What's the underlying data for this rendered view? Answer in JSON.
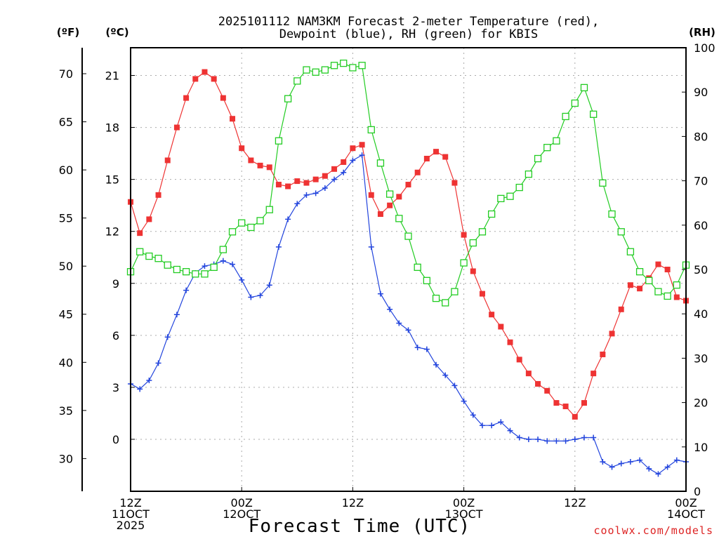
{
  "chart_data": {
    "type": "line",
    "title_lines": [
      "2025101112 NAM3KM Forecast 2-meter Temperature (red),",
      "Dewpoint (blue), RH (green) for KBIS"
    ],
    "unit_labels": {
      "fahrenheit": "(ºF)",
      "celsius": "(ºC)",
      "rh": "(RH)"
    },
    "xlabel": "Forecast Time (UTC)",
    "credit": "coolwx.com/models",
    "x_range_hours": [
      0,
      60
    ],
    "x_ticks": [
      {
        "hour": 0,
        "lines": [
          "12Z",
          "11OCT",
          "2025"
        ]
      },
      {
        "hour": 12,
        "lines": [
          "00Z",
          "12OCT"
        ]
      },
      {
        "hour": 24,
        "lines": [
          "12Z"
        ]
      },
      {
        "hour": 36,
        "lines": [
          "00Z",
          "13OCT"
        ]
      },
      {
        "hour": 48,
        "lines": [
          "12Z"
        ]
      },
      {
        "hour": 60,
        "lines": [
          "00Z",
          "14OCT"
        ]
      }
    ],
    "celsius_axis": {
      "range": [
        -3,
        22.6
      ],
      "ticks": [
        0,
        3,
        6,
        9,
        12,
        15,
        18,
        21
      ]
    },
    "fahrenheit_axis": {
      "range": [
        26.6,
        72.7
      ],
      "ticks": [
        30,
        35,
        40,
        45,
        50,
        55,
        60,
        65,
        70
      ]
    },
    "rh_axis": {
      "range": [
        0,
        100
      ],
      "ticks": [
        0,
        10,
        20,
        30,
        40,
        50,
        60,
        70,
        80,
        90,
        100
      ]
    },
    "colors": {
      "temperature": "#ee3333",
      "dewpoint": "#2244dd",
      "rh": "#22cc22",
      "grid": "#aaaaaa",
      "credit": "#dd2222"
    },
    "series": [
      {
        "name": "Temperature (°C)",
        "axis": "celsius",
        "marker": "filled-square",
        "color": "#ee3333",
        "x": [
          0,
          1,
          2,
          3,
          4,
          5,
          6,
          7,
          8,
          9,
          10,
          11,
          12,
          13,
          14,
          15,
          16,
          17,
          18,
          19,
          20,
          21,
          22,
          23,
          24,
          25,
          26,
          27,
          28,
          29,
          30,
          31,
          32,
          33,
          34,
          35,
          36,
          37,
          38,
          39,
          40,
          41,
          42,
          43,
          44,
          45,
          46,
          47,
          48,
          49,
          50,
          51,
          52,
          53,
          54,
          55,
          56,
          57,
          58,
          59,
          60
        ],
        "values": [
          13.7,
          11.9,
          12.7,
          14.1,
          16.1,
          18.0,
          19.7,
          20.8,
          21.2,
          20.8,
          19.7,
          18.5,
          16.8,
          16.1,
          15.8,
          15.7,
          14.7,
          14.6,
          14.9,
          14.8,
          15.0,
          15.2,
          15.6,
          16.0,
          16.8,
          17.0,
          14.1,
          13.0,
          13.5,
          14.0,
          14.7,
          15.4,
          16.2,
          16.6,
          16.3,
          14.8,
          11.8,
          9.7,
          8.4,
          7.2,
          6.5,
          5.6,
          4.6,
          3.8,
          3.2,
          2.8,
          2.1,
          1.9,
          1.3,
          2.1,
          3.8,
          4.9,
          6.1,
          7.5,
          8.9,
          8.7,
          9.3,
          10.1,
          9.8,
          8.2,
          8.0
        ]
      },
      {
        "name": "Dewpoint (°C)",
        "axis": "celsius",
        "marker": "plus",
        "color": "#2244dd",
        "x": [
          0,
          1,
          2,
          3,
          4,
          5,
          6,
          7,
          8,
          9,
          10,
          11,
          12,
          13,
          14,
          15,
          16,
          17,
          18,
          19,
          20,
          21,
          22,
          23,
          24,
          25,
          26,
          27,
          28,
          29,
          30,
          31,
          32,
          33,
          34,
          35,
          36,
          37,
          38,
          39,
          40,
          41,
          42,
          43,
          44,
          45,
          46,
          47,
          48,
          49,
          50,
          51,
          52,
          53,
          54,
          55,
          56,
          57,
          58,
          59,
          60
        ],
        "values": [
          3.2,
          2.9,
          3.4,
          4.4,
          5.9,
          7.2,
          8.6,
          9.6,
          10.0,
          10.1,
          10.3,
          10.1,
          9.2,
          8.2,
          8.3,
          8.9,
          11.1,
          12.7,
          13.6,
          14.1,
          14.2,
          14.5,
          15.0,
          15.4,
          16.1,
          16.4,
          11.1,
          8.4,
          7.5,
          6.7,
          6.3,
          5.3,
          5.2,
          4.3,
          3.7,
          3.1,
          2.2,
          1.4,
          0.8,
          0.8,
          1.0,
          0.5,
          0.1,
          0.0,
          0.0,
          -0.1,
          -0.1,
          -0.1,
          0.0,
          0.1,
          0.1,
          -1.3,
          -1.6,
          -1.4,
          -1.3,
          -1.2,
          -1.7,
          -2.0,
          -1.6,
          -1.2,
          -1.3
        ]
      },
      {
        "name": "RH (%)",
        "axis": "rh",
        "marker": "open-square",
        "color": "#22cc22",
        "x": [
          0,
          1,
          2,
          3,
          4,
          5,
          6,
          7,
          8,
          9,
          10,
          11,
          12,
          13,
          14,
          15,
          16,
          17,
          18,
          19,
          20,
          21,
          22,
          23,
          24,
          25,
          26,
          27,
          28,
          29,
          30,
          31,
          32,
          33,
          34,
          35,
          36,
          37,
          38,
          39,
          40,
          41,
          42,
          43,
          44,
          45,
          46,
          47,
          48,
          49,
          50,
          51,
          52,
          53,
          54,
          55,
          56,
          57,
          58,
          59,
          60
        ],
        "values": [
          49.5,
          54,
          53,
          52.5,
          51,
          50,
          49.5,
          49,
          49,
          50.5,
          54.5,
          58.5,
          60.5,
          59.5,
          61,
          63.5,
          79,
          88.5,
          92.5,
          95,
          94.5,
          95,
          96,
          96.5,
          95.5,
          96,
          81.5,
          74,
          67,
          61.5,
          57.5,
          50.5,
          47.5,
          43.5,
          42.5,
          45,
          51.5,
          56,
          58.5,
          62.5,
          66,
          66.5,
          68.5,
          71.5,
          75,
          77.5,
          79,
          84.5,
          87.5,
          91,
          85,
          69.5,
          62.5,
          58.5,
          54,
          49.5,
          47.5,
          45,
          44,
          46.5,
          51
        ]
      }
    ]
  }
}
